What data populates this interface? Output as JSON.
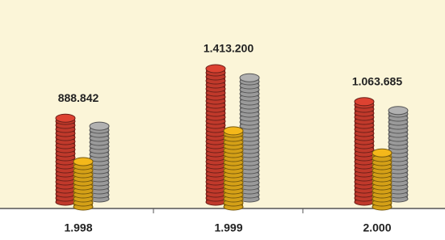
{
  "chart_data": {
    "type": "coin-stack",
    "categories": [
      "1.998",
      "1.999",
      "2.000"
    ],
    "series": [
      {
        "color": "#c0392b",
        "values": [
          888842,
          1413200,
          1063685
        ],
        "value_labels": [
          "888.842",
          "1.413.200",
          "1.063.685"
        ]
      },
      {
        "color": "#9a9a9a",
        "values": [
          770000,
          1283000,
          936000
        ]
      },
      {
        "color": "#d4a017",
        "values": [
          480000,
          806000,
          572000
        ]
      }
    ]
  }
}
